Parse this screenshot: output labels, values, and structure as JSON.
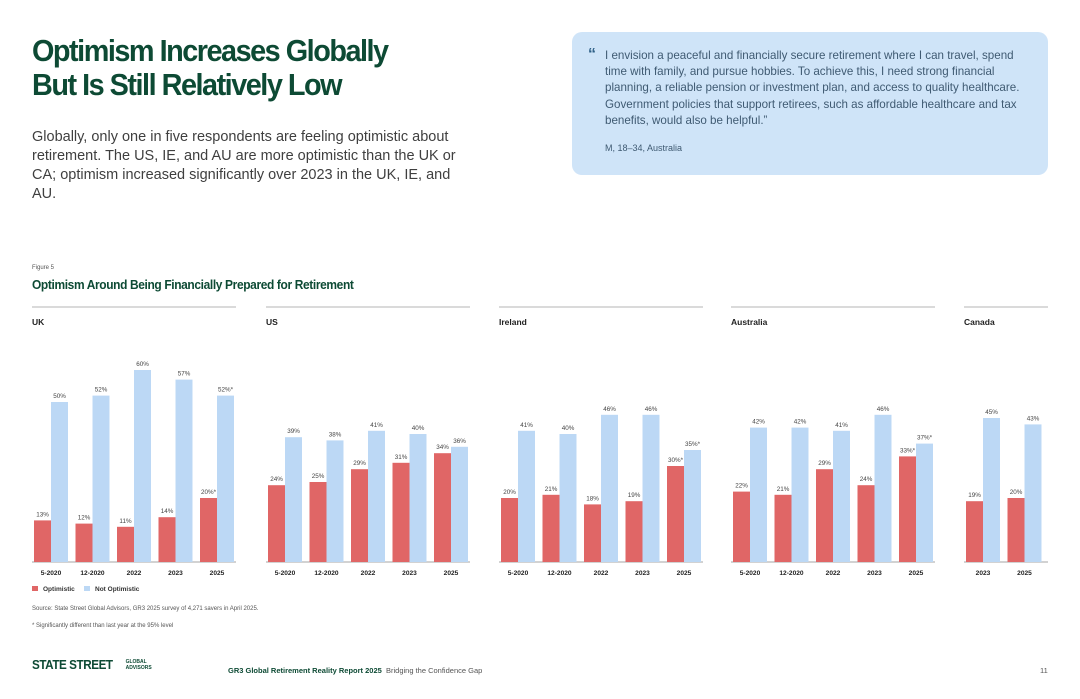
{
  "headline": {
    "line1": "Optimism Increases Globally",
    "line2": "But Is Still Relatively Low"
  },
  "intro": "Globally, only one in five respondents are feeling optimistic about retirement. The US, IE, and AU are more optimistic than the UK or CA; optimism increased significantly over 2023 in the UK, IE, and AU.",
  "quote": {
    "mark": "“",
    "text": "I envision a peaceful and financially secure retirement where I can travel, spend time with family, and pursue hobbies. To achieve this, I need strong financial planning, a reliable pension or investment plan, and access to quality healthcare. Government policies that support retirees, such as affordable healthcare and tax benefits, would also be helpful.”",
    "attribution": "M, 18–34, Australia"
  },
  "figure": {
    "label": "Figure 5",
    "title": "Optimism Around Being Financially Prepared for Retirement"
  },
  "chart_data": {
    "type": "bar",
    "title": "Optimism Around Being Financially Prepared for Retirement",
    "value_unit": "%",
    "ylim": [
      0,
      60
    ],
    "grid": false,
    "colors": {
      "Optimistic": "#e06666",
      "Not Optimistic": "#bcd8f5"
    },
    "panels": [
      {
        "name": "UK",
        "categories": [
          "5-2020",
          "12-2020",
          "2022",
          "2023",
          "2025"
        ],
        "series": [
          {
            "name": "Optimistic",
            "values": [
              13,
              12,
              11,
              14,
              20
            ],
            "labels": [
              "13%",
              "12%",
              "11%",
              "14%",
              "20%*"
            ]
          },
          {
            "name": "Not Optimistic",
            "values": [
              50,
              52,
              60,
              57,
              52
            ],
            "labels": [
              "50%",
              "52%",
              "60%",
              "57%",
              "52%*"
            ]
          }
        ]
      },
      {
        "name": "US",
        "categories": [
          "5-2020",
          "12-2020",
          "2022",
          "2023",
          "2025"
        ],
        "series": [
          {
            "name": "Optimistic",
            "values": [
              24,
              25,
              29,
              31,
              34
            ],
            "labels": [
              "24%",
              "25%",
              "29%",
              "31%",
              "34%"
            ]
          },
          {
            "name": "Not Optimistic",
            "values": [
              39,
              38,
              41,
              40,
              36
            ],
            "labels": [
              "39%",
              "38%",
              "41%",
              "40%",
              "36%"
            ]
          }
        ]
      },
      {
        "name": "Ireland",
        "categories": [
          "5-2020",
          "12-2020",
          "2022",
          "2023",
          "2025"
        ],
        "series": [
          {
            "name": "Optimistic",
            "values": [
              20,
              21,
              18,
              19,
              30
            ],
            "labels": [
              "20%",
              "21%",
              "18%",
              "19%",
              "30%*"
            ]
          },
          {
            "name": "Not Optimistic",
            "values": [
              41,
              40,
              46,
              46,
              35
            ],
            "labels": [
              "41%",
              "40%",
              "46%",
              "46%",
              "35%*"
            ]
          }
        ]
      },
      {
        "name": "Australia",
        "categories": [
          "5-2020",
          "12-2020",
          "2022",
          "2023",
          "2025"
        ],
        "series": [
          {
            "name": "Optimistic",
            "values": [
              22,
              21,
              29,
              24,
              33
            ],
            "labels": [
              "22%",
              "21%",
              "29%",
              "24%",
              "33%*"
            ]
          },
          {
            "name": "Not Optimistic",
            "values": [
              42,
              42,
              41,
              46,
              37
            ],
            "labels": [
              "42%",
              "42%",
              "41%",
              "46%",
              "37%*"
            ]
          }
        ]
      },
      {
        "name": "Canada",
        "categories": [
          "2023",
          "2025"
        ],
        "series": [
          {
            "name": "Optimistic",
            "values": [
              19,
              20
            ],
            "labels": [
              "19%",
              "20%"
            ]
          },
          {
            "name": "Not Optimistic",
            "values": [
              45,
              43
            ],
            "labels": [
              "45%",
              "43%"
            ]
          }
        ]
      }
    ]
  },
  "legend": {
    "optimistic": "Optimistic",
    "not_optimistic": "Not Optimistic"
  },
  "source": "Source: State Street Global Advisors, GR3 2025 survey of 4,271 savers in April 2025.",
  "note": "* Significantly different than last year at the 95% level",
  "footer": {
    "logo_main": "STATE STREET",
    "logo_sub": "GLOBAL ADVISORS",
    "report_title": "GR3 Global Retirement Reality Report 2025",
    "report_subtitle": "Bridging the Confidence Gap",
    "page_number": "11"
  }
}
